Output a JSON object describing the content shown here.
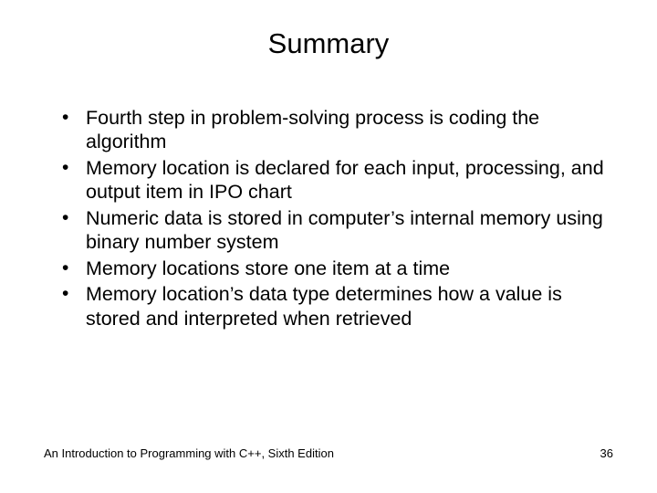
{
  "slide": {
    "title": "Summary",
    "bullets": [
      "Fourth step in problem-solving process is coding the algorithm",
      "Memory location is declared for each input, processing, and output item in IPO chart",
      "Numeric data is stored in computer’s internal memory using binary number system",
      "Memory locations store one item at a time",
      "Memory location’s data type determines how a value is stored and interpreted when retrieved"
    ],
    "footer_text": "An Introduction to Programming with C++, Sixth Edition",
    "page_number": "36"
  },
  "style": {
    "background_color": "#ffffff",
    "text_color": "#000000",
    "title_fontsize": 31,
    "body_fontsize": 21.5,
    "footer_fontsize": 13,
    "font_family": "Arial"
  }
}
